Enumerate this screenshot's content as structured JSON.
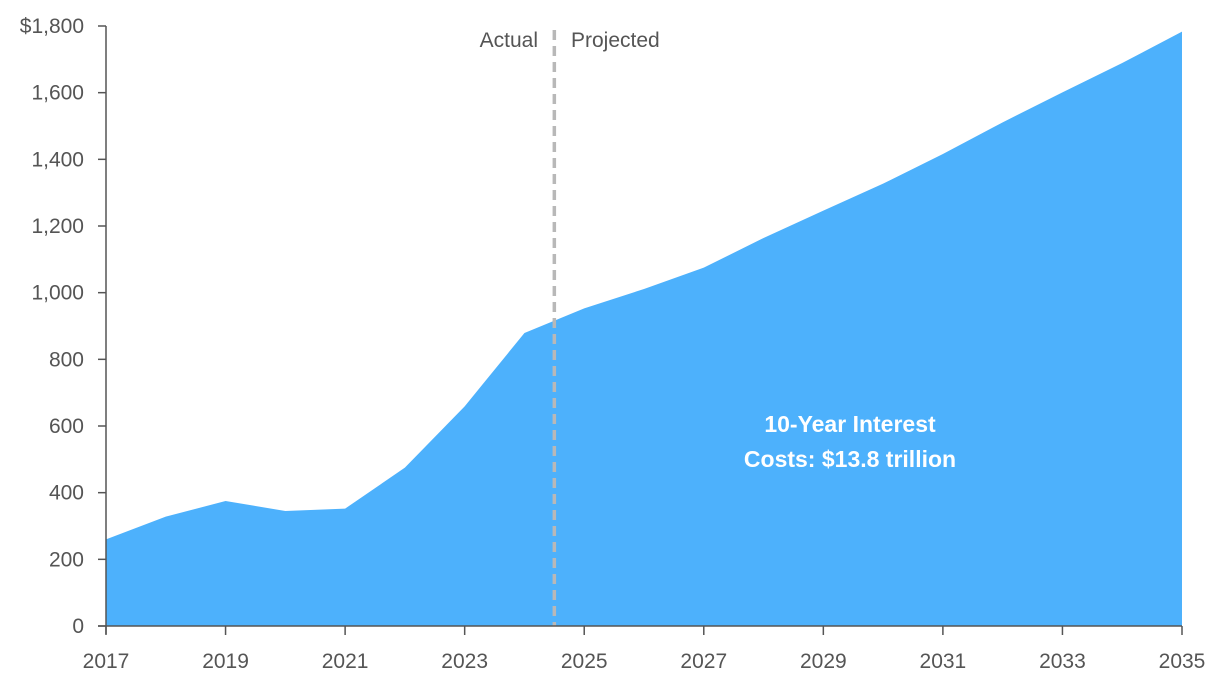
{
  "chart_data": {
    "type": "area",
    "title": "",
    "xlabel": "",
    "ylabel": "",
    "x": [
      2017,
      2018,
      2019,
      2020,
      2021,
      2022,
      2023,
      2024,
      2025,
      2026,
      2027,
      2028,
      2029,
      2030,
      2031,
      2032,
      2033,
      2034,
      2035
    ],
    "values": [
      260,
      328,
      375,
      345,
      352,
      475,
      659,
      879,
      953,
      1011,
      1075,
      1164,
      1246,
      1327,
      1416,
      1511,
      1601,
      1689,
      1783
    ],
    "ylim": [
      0,
      1800
    ],
    "xlim": [
      2017,
      2035
    ],
    "y_ticks": [
      0,
      200,
      400,
      600,
      800,
      1000,
      1200,
      1400,
      1600,
      1800
    ],
    "y_tick_labels": [
      "0",
      "200",
      "400",
      "600",
      "800",
      "1,000",
      "1,200",
      "1,400",
      "1,600",
      "$1,800"
    ],
    "x_ticks": [
      2017,
      2019,
      2021,
      2023,
      2025,
      2027,
      2029,
      2031,
      2033,
      2035
    ],
    "x_tick_labels": [
      "2017",
      "2019",
      "2021",
      "2023",
      "2025",
      "2027",
      "2029",
      "2031",
      "2033",
      "2035"
    ],
    "divider_x": 2024.5,
    "divider_labels": {
      "left": "Actual",
      "right": "Projected"
    },
    "annotation": {
      "line1": "10-Year Interest",
      "line2": "Costs: $13.8 trillion"
    },
    "grid": false,
    "legend": "none"
  },
  "colors": {
    "area": "#4db1fc",
    "divider": "#b8b8b8",
    "axis": "#555555",
    "text": "#555555",
    "annotation_text": "#ffffff"
  }
}
